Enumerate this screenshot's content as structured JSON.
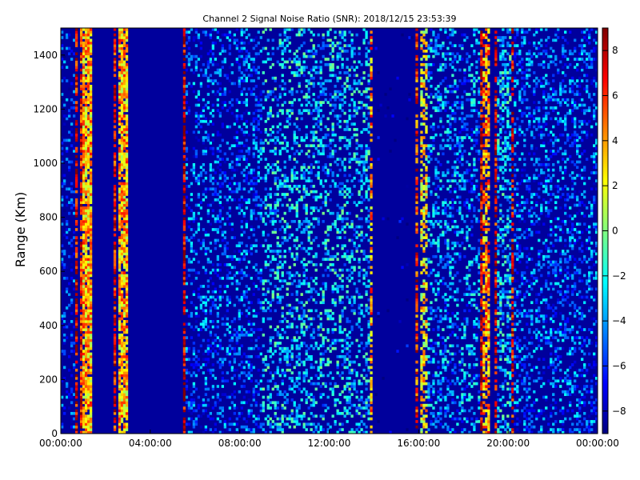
{
  "chart_data": {
    "type": "heatmap",
    "title": "Channel 2 Signal Noise Ratio (SNR): 2018/12/15 23:53:39",
    "xlabel": "",
    "ylabel": "Range (Km)",
    "x_tick_labels": [
      "00:00:00",
      "04:00:00",
      "08:00:00",
      "12:00:00",
      "16:00:00",
      "20:00:00",
      "00:00:00"
    ],
    "x_range_hours": [
      0,
      24
    ],
    "x_tick_hours": [
      0,
      4,
      8,
      12,
      16,
      20,
      24
    ],
    "y_range": [
      0,
      1500
    ],
    "y_ticks": [
      0,
      200,
      400,
      600,
      800,
      1000,
      1200,
      1400
    ],
    "colorbar": {
      "colormap": "jet",
      "range": [
        -9,
        9
      ],
      "ticks": [
        -8,
        -6,
        -4,
        -2,
        0,
        2,
        4,
        6,
        8
      ]
    },
    "grid": false,
    "background_value": -8.5,
    "bands": [
      {
        "start_hour": 0.0,
        "end_hour": 0.6,
        "level": -6.0,
        "density": 0.25
      },
      {
        "start_hour": 0.65,
        "end_hour": 0.75,
        "level": 7.5,
        "density": 0.75
      },
      {
        "start_hour": 0.9,
        "end_hour": 1.0,
        "level": 6.5,
        "density": 0.8
      },
      {
        "start_hour": 1.0,
        "end_hour": 1.4,
        "level": 3.5,
        "density": 0.9
      },
      {
        "start_hour": 2.4,
        "end_hour": 2.5,
        "level": 7.0,
        "density": 0.7
      },
      {
        "start_hour": 2.6,
        "end_hour": 2.95,
        "level": 3.5,
        "density": 0.85
      },
      {
        "start_hour": 5.45,
        "end_hour": 5.6,
        "level": 8.0,
        "density": 0.8
      },
      {
        "start_hour": 5.9,
        "end_hour": 6.05,
        "level": 7.0,
        "density": 0.7
      },
      {
        "start_hour": 5.6,
        "end_hour": 9.0,
        "level": -5.0,
        "density": 0.28
      },
      {
        "start_hour": 9.0,
        "end_hour": 13.8,
        "level": -3.0,
        "density": 0.3
      },
      {
        "start_hour": 13.8,
        "end_hour": 13.95,
        "level": 4.0,
        "density": 0.55
      },
      {
        "start_hour": 14.0,
        "end_hour": 15.8,
        "level": -8.6,
        "density": 0.02
      },
      {
        "start_hour": 15.85,
        "end_hour": 16.0,
        "level": 6.0,
        "density": 0.6
      },
      {
        "start_hour": 16.1,
        "end_hour": 16.4,
        "level": 2.5,
        "density": 0.55
      },
      {
        "start_hour": 16.4,
        "end_hour": 18.7,
        "level": -4.0,
        "density": 0.3
      },
      {
        "start_hour": 18.7,
        "end_hour": 18.9,
        "level": 8.0,
        "density": 0.75
      },
      {
        "start_hour": 18.9,
        "end_hour": 19.2,
        "level": 4.0,
        "density": 0.65
      },
      {
        "start_hour": 19.35,
        "end_hour": 19.5,
        "level": 7.5,
        "density": 0.6
      },
      {
        "start_hour": 19.5,
        "end_hour": 20.1,
        "level": -3.0,
        "density": 0.4
      },
      {
        "start_hour": 20.1,
        "end_hour": 20.25,
        "level": 7.0,
        "density": 0.5
      },
      {
        "start_hour": 20.25,
        "end_hour": 24.0,
        "level": -5.0,
        "density": 0.3
      }
    ],
    "colors": {
      "frame": "#000000",
      "background": "#ffffff",
      "plot_background": "#00007f"
    }
  }
}
